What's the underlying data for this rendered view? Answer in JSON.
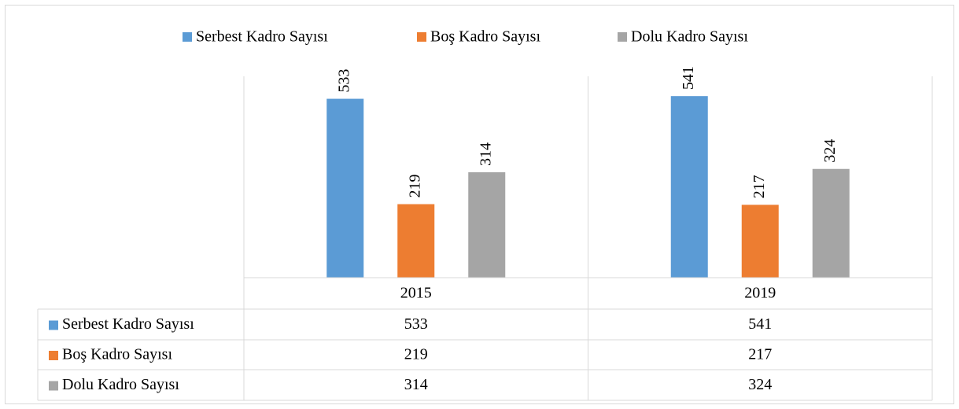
{
  "chart_data": {
    "type": "bar",
    "categories": [
      "2015",
      "2019"
    ],
    "series": [
      {
        "name": "Serbest Kadro Sayısı",
        "color": "#5b9bd5",
        "values": [
          533,
          541
        ]
      },
      {
        "name": "Boş Kadro Sayısı",
        "color": "#ed7d31",
        "values": [
          219,
          217
        ]
      },
      {
        "name": "Dolu Kadro Sayısı",
        "color": "#a5a5a5",
        "values": [
          314,
          324
        ]
      }
    ],
    "ylim": [
      0,
      600
    ],
    "legend": "top",
    "data_table": true
  }
}
